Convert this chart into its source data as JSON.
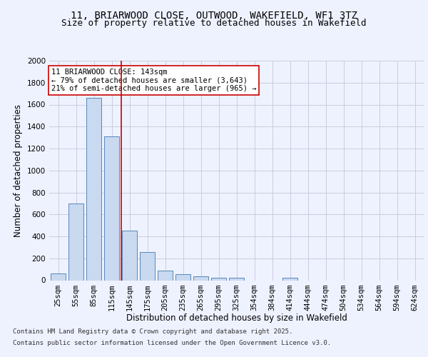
{
  "title_line1": "11, BRIARWOOD CLOSE, OUTWOOD, WAKEFIELD, WF1 3TZ",
  "title_line2": "Size of property relative to detached houses in Wakefield",
  "xlabel": "Distribution of detached houses by size in Wakefield",
  "ylabel": "Number of detached properties",
  "categories": [
    "25sqm",
    "55sqm",
    "85sqm",
    "115sqm",
    "145sqm",
    "175sqm",
    "205sqm",
    "235sqm",
    "265sqm",
    "295sqm",
    "325sqm",
    "354sqm",
    "384sqm",
    "414sqm",
    "444sqm",
    "474sqm",
    "504sqm",
    "534sqm",
    "564sqm",
    "594sqm",
    "624sqm"
  ],
  "values": [
    65,
    700,
    1660,
    1310,
    450,
    255,
    90,
    55,
    35,
    25,
    20,
    0,
    0,
    20,
    0,
    0,
    0,
    0,
    0,
    0,
    0
  ],
  "bar_color": "#c9d9f0",
  "bar_edge_color": "#5588bb",
  "vline_color": "#cc0000",
  "annotation_text": "11 BRIARWOOD CLOSE: 143sqm\n← 79% of detached houses are smaller (3,643)\n21% of semi-detached houses are larger (965) →",
  "annotation_box_color": "#ffffff",
  "annotation_box_edge": "#cc0000",
  "ylim": [
    0,
    2000
  ],
  "yticks": [
    0,
    200,
    400,
    600,
    800,
    1000,
    1200,
    1400,
    1600,
    1800,
    2000
  ],
  "footer_line1": "Contains HM Land Registry data © Crown copyright and database right 2025.",
  "footer_line2": "Contains public sector information licensed under the Open Government Licence v3.0.",
  "background_color": "#eef2ff",
  "grid_color": "#c8cce0",
  "title_fontsize": 10,
  "subtitle_fontsize": 9,
  "axis_label_fontsize": 8.5,
  "tick_fontsize": 7.5,
  "annotation_fontsize": 7.5,
  "footer_fontsize": 6.5
}
